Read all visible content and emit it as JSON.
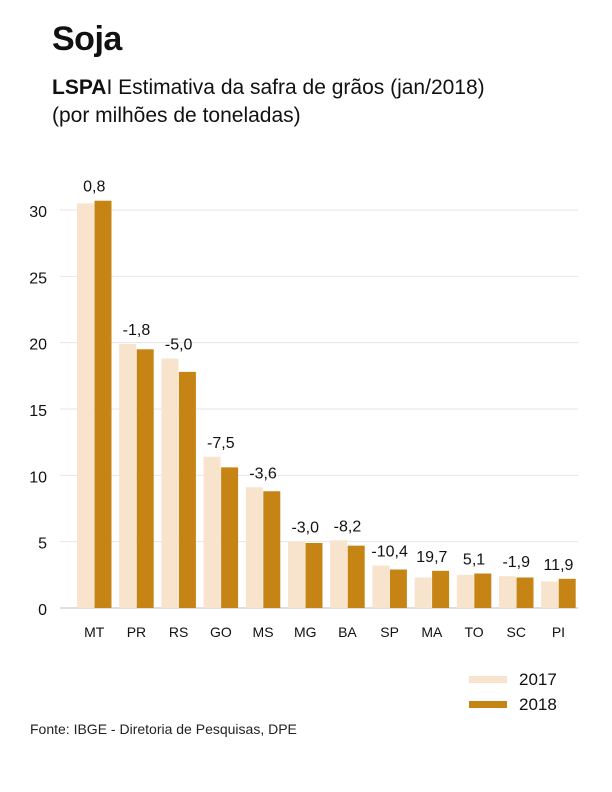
{
  "header": {
    "title": "Soja",
    "subtitle_bold": "LSPA",
    "subtitle_rest": "I Estimativa da safra de grãos (jan/2018)",
    "subtitle_line2": "(por milhões de toneladas)"
  },
  "source": "Fonte: IBGE - Diretoria de Pesquisas, DPE",
  "chart_data": {
    "type": "bar",
    "title": "Soja",
    "subtitle": "LSPAI Estimativa da safra de grãos (jan/2018) (por milhões de toneladas)",
    "xlabel": "",
    "ylabel": "",
    "ylim": [
      0,
      30
    ],
    "yticks": [
      0,
      5,
      10,
      15,
      20,
      25,
      30
    ],
    "grid": true,
    "legend": "bottom-right",
    "categories": [
      "MT",
      "PR",
      "RS",
      "GO",
      "MS",
      "MG",
      "BA",
      "SP",
      "MA",
      "TO",
      "SC",
      "PI"
    ],
    "series": [
      {
        "name": "2017",
        "color": "#f8e3cd",
        "values": [
          30.5,
          19.9,
          18.8,
          11.4,
          9.1,
          5.0,
          5.1,
          3.2,
          2.3,
          2.5,
          2.4,
          2.0
        ]
      },
      {
        "name": "2018",
        "color": "#c68414",
        "values": [
          30.7,
          19.5,
          17.8,
          10.6,
          8.8,
          4.9,
          4.7,
          2.9,
          2.8,
          2.6,
          2.3,
          2.2
        ]
      }
    ],
    "change_labels": [
      "0,8",
      "-1,8",
      "-5,0",
      "-7,5",
      "-3,6",
      "-3,0",
      "-8,2",
      "-10,4",
      "19,7",
      "5,1",
      "-1,9",
      "11,9"
    ]
  }
}
